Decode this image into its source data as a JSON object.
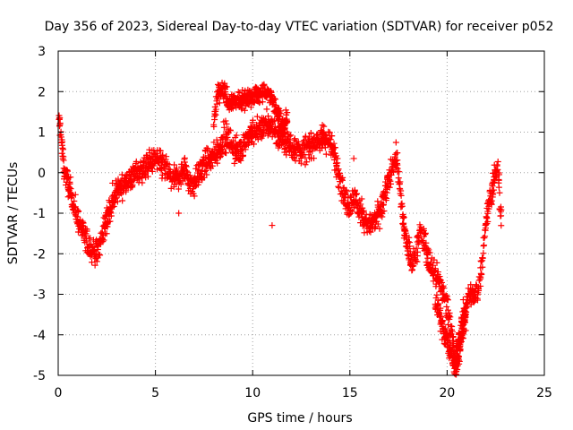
{
  "chart_data": {
    "type": "scatter",
    "title": "Day 356 of 2023, Sidereal Day-to-day VTEC variation (SDTVAR) for receiver p052",
    "xlabel": "GPS time / hours",
    "ylabel": "SDTVAR / TECUs",
    "xlim": [
      0,
      25
    ],
    "ylim": [
      -5,
      3
    ],
    "xticks": [
      0,
      5,
      10,
      15,
      20,
      25
    ],
    "yticks": [
      -5,
      -4,
      -3,
      -2,
      -1,
      0,
      1,
      2,
      3
    ],
    "grid": true,
    "marker": "+",
    "colors": {
      "series": "#ff0000",
      "grid": "#a0a0a0",
      "axis": "#000000"
    },
    "series": [
      {
        "name": "SDTVAR",
        "trace": [
          [
            0.0,
            1.4
          ],
          [
            0.1,
            1.2
          ],
          [
            0.2,
            0.6
          ],
          [
            0.3,
            0.1
          ],
          [
            0.4,
            -0.1
          ],
          [
            0.6,
            -0.4
          ],
          [
            0.8,
            -0.8
          ],
          [
            1.0,
            -1.1
          ],
          [
            1.2,
            -1.4
          ],
          [
            1.4,
            -1.6
          ],
          [
            1.6,
            -1.8
          ],
          [
            1.8,
            -1.9
          ],
          [
            2.0,
            -2.0
          ],
          [
            2.2,
            -1.7
          ],
          [
            2.4,
            -1.3
          ],
          [
            2.6,
            -1.0
          ],
          [
            2.8,
            -0.7
          ],
          [
            3.0,
            -0.5
          ],
          [
            3.3,
            -0.3
          ],
          [
            3.6,
            -0.2
          ],
          [
            4.0,
            0.0
          ],
          [
            4.3,
            0.1
          ],
          [
            4.6,
            0.2
          ],
          [
            5.0,
            0.3
          ],
          [
            5.3,
            0.2
          ],
          [
            5.6,
            0.0
          ],
          [
            5.9,
            -0.2
          ],
          [
            6.2,
            -0.1
          ],
          [
            6.5,
            0.1
          ],
          [
            6.8,
            -0.3
          ],
          [
            7.1,
            -0.2
          ],
          [
            7.4,
            0.1
          ],
          [
            7.7,
            0.3
          ],
          [
            8.0,
            0.4
          ],
          [
            8.3,
            0.6
          ],
          [
            8.6,
            0.9
          ],
          [
            8.9,
            0.7
          ],
          [
            9.2,
            0.5
          ],
          [
            9.5,
            0.7
          ],
          [
            9.8,
            0.9
          ],
          [
            10.1,
            1.0
          ],
          [
            10.4,
            1.1
          ],
          [
            10.7,
            1.2
          ],
          [
            11.0,
            1.1
          ],
          [
            11.3,
            0.9
          ],
          [
            11.6,
            0.8
          ],
          [
            11.9,
            0.7
          ],
          [
            12.2,
            0.6
          ],
          [
            12.5,
            0.5
          ],
          [
            12.8,
            0.6
          ],
          [
            13.1,
            0.7
          ],
          [
            13.4,
            0.8
          ],
          [
            13.7,
            0.9
          ],
          [
            14.0,
            0.7
          ],
          [
            14.3,
            0.3
          ],
          [
            14.6,
            -0.4
          ],
          [
            14.9,
            -0.8
          ],
          [
            15.2,
            -0.6
          ],
          [
            15.5,
            -0.9
          ],
          [
            15.8,
            -1.2
          ],
          [
            16.1,
            -1.3
          ],
          [
            16.4,
            -1.1
          ],
          [
            16.7,
            -0.8
          ],
          [
            17.0,
            -0.2
          ],
          [
            17.2,
            0.2
          ],
          [
            17.4,
            0.4
          ],
          [
            17.6,
            -0.6
          ],
          [
            17.8,
            -1.4
          ],
          [
            18.0,
            -1.9
          ],
          [
            18.2,
            -2.2
          ],
          [
            18.4,
            -2.0
          ],
          [
            18.6,
            -1.4
          ],
          [
            18.8,
            -1.6
          ],
          [
            19.0,
            -2.1
          ],
          [
            19.2,
            -2.4
          ],
          [
            19.4,
            -2.5
          ],
          [
            19.6,
            -2.7
          ],
          [
            19.8,
            -3.0
          ],
          [
            20.0,
            -3.3
          ],
          [
            20.2,
            -3.8
          ],
          [
            20.4,
            -4.6
          ],
          [
            20.6,
            -4.2
          ],
          [
            20.8,
            -3.6
          ],
          [
            21.0,
            -3.2
          ],
          [
            21.2,
            -3.0
          ],
          [
            21.4,
            -3.1
          ],
          [
            21.6,
            -2.9
          ],
          [
            21.8,
            -2.2
          ],
          [
            22.0,
            -1.2
          ],
          [
            22.2,
            -0.6
          ],
          [
            22.4,
            -0.2
          ],
          [
            22.6,
            0.1
          ],
          [
            22.8,
            -1.2
          ]
        ],
        "upper_branch": [
          [
            8.0,
            1.2
          ],
          [
            8.2,
            1.9
          ],
          [
            8.4,
            2.1
          ],
          [
            8.6,
            2.0
          ],
          [
            8.7,
            1.7
          ],
          [
            10.8,
            2.0
          ],
          [
            11.0,
            1.8
          ],
          [
            11.2,
            1.6
          ],
          [
            11.4,
            1.3
          ],
          [
            11.6,
            1.1
          ],
          [
            11.8,
            1.4
          ]
        ],
        "lower_branch": [
          [
            19.4,
            -3.2
          ],
          [
            19.6,
            -3.5
          ],
          [
            19.8,
            -3.9
          ],
          [
            20.0,
            -4.2
          ],
          [
            20.2,
            -4.4
          ],
          [
            20.4,
            -4.9
          ],
          [
            20.6,
            -4.5
          ],
          [
            20.8,
            -3.9
          ],
          [
            21.0,
            -3.5
          ]
        ],
        "outliers": [
          [
            15.2,
            0.35
          ],
          [
            11.0,
            -1.3
          ],
          [
            6.2,
            -1.0
          ]
        ]
      }
    ]
  }
}
